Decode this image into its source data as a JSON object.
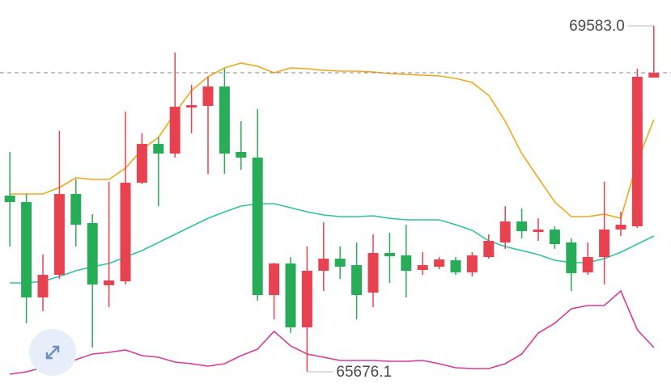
{
  "chart_data": {
    "type": "candlestick",
    "ylim": [
      65447.9,
      69875.1
    ],
    "up_color": "#e8414f",
    "down_color": "#27ad57",
    "last_price_line": true,
    "open": [
      67666,
      67593,
      66516,
      66771,
      67684,
      67356,
      66653,
      66698,
      67812,
      68250,
      68141,
      68661,
      68679,
      68898,
      68159,
      68095,
      66543,
      66899,
      66178,
      66817,
      66954,
      66881,
      66571,
      67018,
      66991,
      66826,
      66863,
      66936,
      66799,
      66972,
      67137,
      67374,
      67255,
      67283,
      67137,
      66799,
      66972,
      67283,
      67319,
      68999
    ],
    "high": [
      68159,
      67684,
      67000,
      68396,
      67849,
      67456,
      67821,
      68615,
      68369,
      68323,
      69282,
      68917,
      69008,
      69099,
      68506,
      68643,
      66908,
      66972,
      67091,
      67365,
      67091,
      67137,
      67228,
      67246,
      67337,
      67027,
      66972,
      66972,
      67027,
      67228,
      67547,
      67520,
      67410,
      67319,
      67182,
      67137,
      67821,
      67483,
      69099,
      69583.0
    ],
    "low": [
      67091,
      66224,
      66361,
      66726,
      67091,
      65950,
      66406,
      66662,
      67794,
      67547,
      68095,
      68369,
      67912,
      67912,
      67958,
      66479,
      66269,
      66114,
      65676.1,
      66589,
      66726,
      66269,
      66406,
      66680,
      66516,
      66771,
      66835,
      66771,
      66753,
      66954,
      67064,
      67182,
      67155,
      67064,
      66589,
      66771,
      66662,
      67210,
      67301,
      68999
    ],
    "close": [
      67593,
      66516,
      66771,
      67684,
      67337,
      66662,
      66708,
      67812,
      68250,
      68141,
      68670,
      68688,
      68898,
      68141,
      68095,
      66543,
      66899,
      66178,
      66817,
      66954,
      66863,
      66543,
      67018,
      66981,
      66817,
      66881,
      66945,
      66799,
      66991,
      67155,
      67374,
      67264,
      67283,
      67118,
      66790,
      66972,
      67283,
      67337,
      69008,
      69053
    ],
    "lines": [
      {
        "color": "#f0a818",
        "values": [
          67684,
          67684,
          67684,
          67757,
          67867,
          67849,
          67849,
          67976,
          68186,
          68323,
          68597,
          68853,
          69008,
          69108,
          69163,
          69127,
          69053,
          69108,
          69099,
          69081,
          69072,
          69072,
          69063,
          69044,
          69035,
          69026,
          69017,
          68990,
          68944,
          68798,
          68506,
          68141,
          67867,
          67593,
          67429,
          67429,
          67456,
          67410,
          68049,
          68524
        ]
      },
      {
        "color": "#2ec4a2",
        "values": [
          66680,
          66680,
          66698,
          66753,
          66817,
          66863,
          66899,
          66972,
          67045,
          67137,
          67228,
          67319,
          67410,
          67483,
          67547,
          67575,
          67575,
          67529,
          67483,
          67447,
          67429,
          67429,
          67438,
          67410,
          67392,
          67392,
          67392,
          67337,
          67274,
          67155,
          67091,
          67045,
          67000,
          66936,
          66908,
          66908,
          66954,
          67027,
          67118,
          67210
        ]
      },
      {
        "color": "#d63a9e",
        "values": [
          65649,
          65676,
          65722,
          65767,
          65813,
          65877,
          65895,
          65923,
          65859,
          65840,
          65786,
          65767,
          65740,
          65767,
          65859,
          65932,
          66133,
          65968,
          65877,
          65840,
          65804,
          65804,
          65804,
          65795,
          65795,
          65804,
          65767,
          65722,
          65713,
          65713,
          65767,
          65877,
          66114,
          66224,
          66388,
          66425,
          66425,
          66589,
          66151,
          65950
        ]
      }
    ],
    "annotations": [
      {
        "value": 69583.0,
        "label": "69583.0"
      },
      {
        "value": 65676.1,
        "label": "65676.1"
      }
    ]
  }
}
